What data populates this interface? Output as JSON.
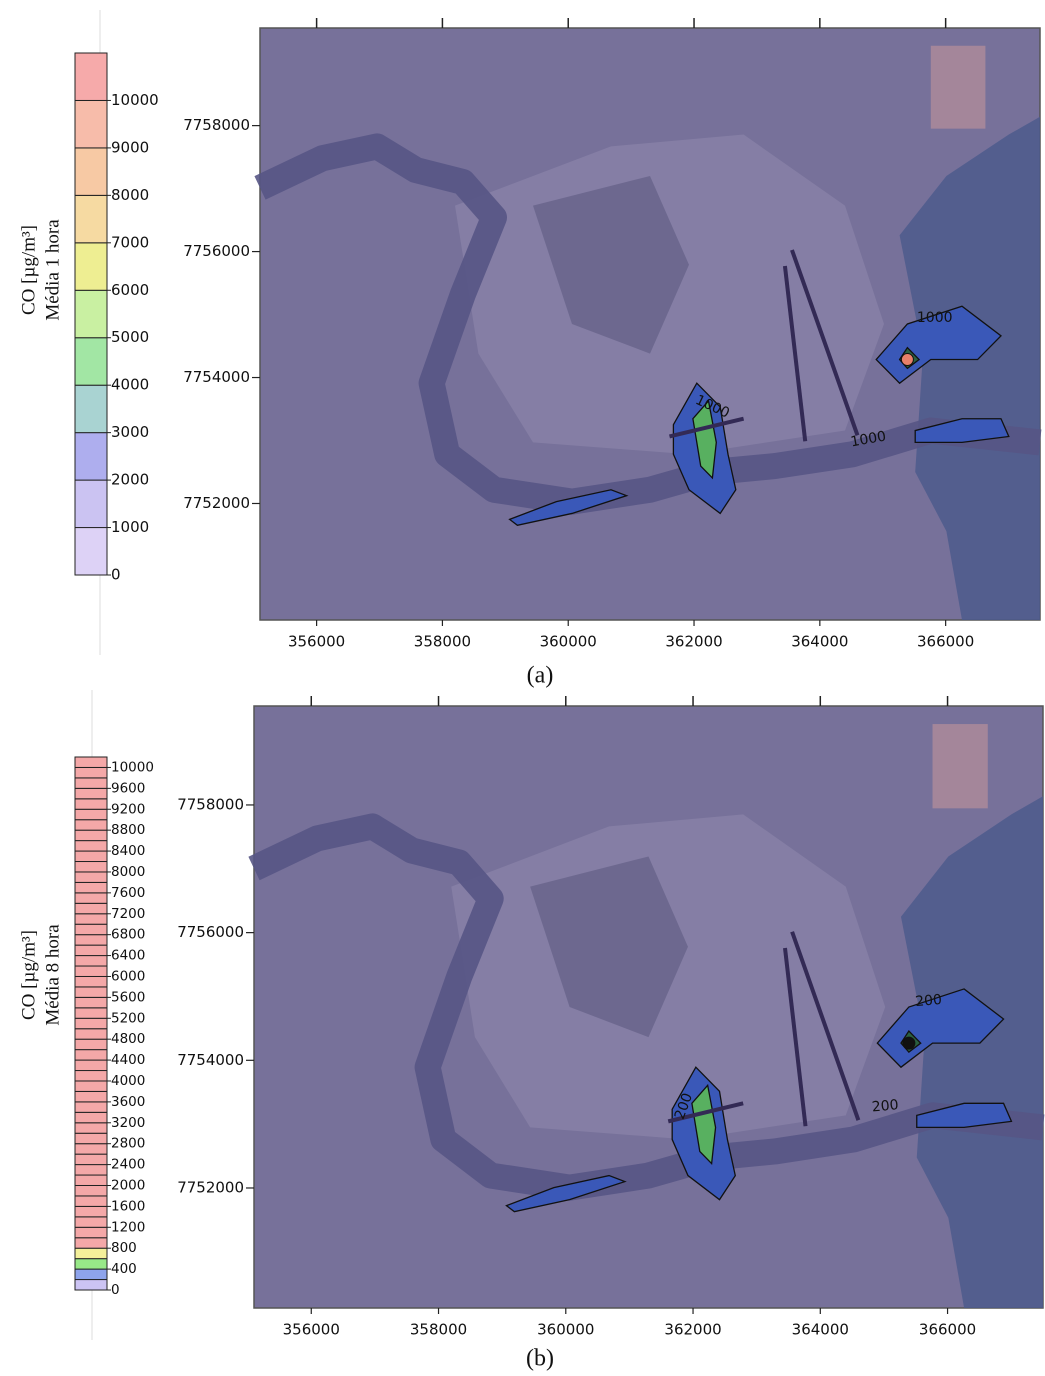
{
  "chart_data": [
    {
      "type": "contour",
      "panel_label": "(a)",
      "colorbar_label": [
        "CO  [µg/m³]",
        "Média 1 hora"
      ],
      "clim": [
        0,
        11000
      ],
      "cticks": [
        0,
        1000,
        2000,
        3000,
        4000,
        5000,
        6000,
        7000,
        8000,
        9000,
        10000
      ],
      "colors": [
        "#ddd2f6",
        "#cbc3f2",
        "#aeaeee",
        "#a9d3d2",
        "#a2e6a4",
        "#c9f0a2",
        "#eeee92",
        "#f6daa2",
        "#f7c9a4",
        "#f7bcaa",
        "#f6aaaa"
      ],
      "xlim": [
        355100,
        367500
      ],
      "xticks": [
        356000,
        358000,
        360000,
        362000,
        364000,
        366000
      ],
      "ylim": [
        7750150,
        7759550
      ],
      "yticks": [
        7752000,
        7754000,
        7756000,
        7758000
      ],
      "contour_labels": [
        "1000",
        "1000",
        "1000"
      ]
    },
    {
      "type": "contour",
      "panel_label": "(b)",
      "colorbar_label": [
        "CO  [µg/m³]",
        "Média 8 hora"
      ],
      "clim": [
        0,
        10200
      ],
      "cticks": [
        0,
        400,
        800,
        1200,
        1600,
        2000,
        2400,
        2800,
        3200,
        3600,
        4000,
        4400,
        4800,
        5200,
        5600,
        6000,
        6400,
        6800,
        7200,
        7600,
        8000,
        8400,
        8800,
        9200,
        9600,
        10000
      ],
      "colors": [
        "#ccc4f4",
        "#8ea4ec",
        "#98e888",
        "#f4f09a",
        "#f4a8a8",
        "#f4a8a8",
        "#f4a8a8",
        "#f4a8a8",
        "#f4a8a8",
        "#f4a8a8",
        "#f4a8a8",
        "#f4a8a8",
        "#f4a8a8",
        "#f4a8a8",
        "#f4a8a8",
        "#f4a8a8",
        "#f4a8a8",
        "#f4a8a8",
        "#f4a8a8",
        "#f4a8a8",
        "#f4a8a8",
        "#f4a8a8",
        "#f4a8a8",
        "#f4a8a8",
        "#f4a8a8",
        "#f4a8a8",
        "#f4a8a8",
        "#f4a8a8",
        "#f4a8a8",
        "#f4a8a8",
        "#f4a8a8",
        "#f4a8a8",
        "#f4a8a8",
        "#f4a8a8",
        "#f4a8a8",
        "#f4a8a8",
        "#f4a8a8",
        "#f4a8a8",
        "#f4a8a8",
        "#f4a8a8",
        "#f4a8a8",
        "#f4a8a8",
        "#f4a8a8",
        "#f4a8a8",
        "#f4a8a8",
        "#f4a8a8",
        "#f4a8a8",
        "#f4a8a8",
        "#f4a8a8",
        "#f4a8a8",
        "#f4a8a8"
      ],
      "xlim": [
        355100,
        367500
      ],
      "xticks": [
        356000,
        358000,
        360000,
        362000,
        364000,
        366000
      ],
      "ylim": [
        7750120,
        7759550
      ],
      "yticks": [
        7752000,
        7754000,
        7756000,
        7758000
      ],
      "contour_labels": [
        "200",
        "200",
        "200"
      ]
    }
  ]
}
